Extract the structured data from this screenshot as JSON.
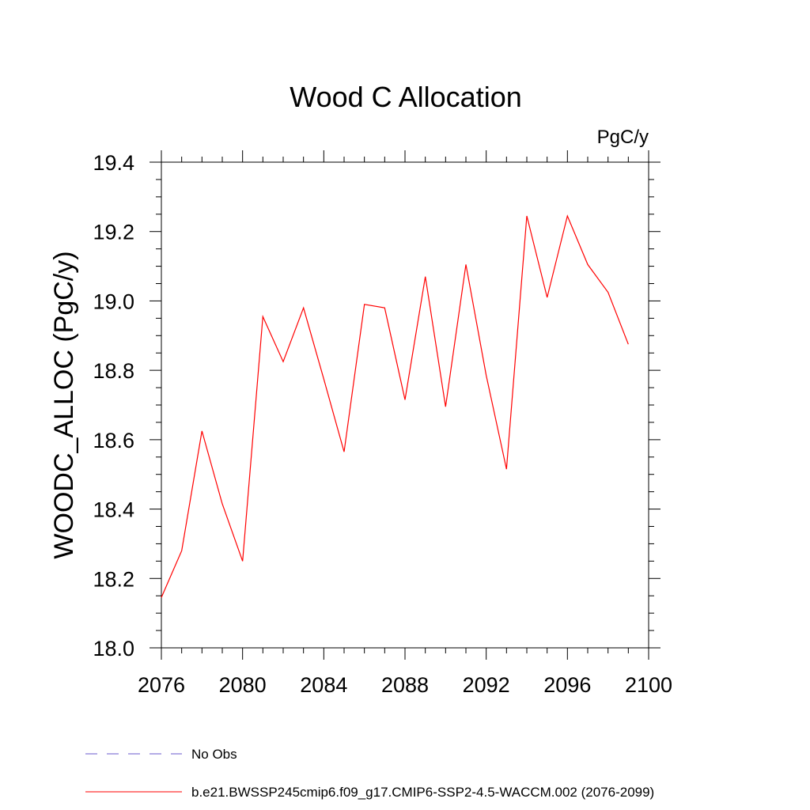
{
  "chart_data": {
    "type": "line",
    "title": "Wood C Allocation",
    "units": "PgC/y",
    "xlabel": "",
    "ylabel": "WOODC_ALLOC  (PgC/y)",
    "xlim": [
      2076,
      2100
    ],
    "ylim": [
      18.0,
      19.4
    ],
    "x_ticks": [
      2076,
      2080,
      2084,
      2088,
      2092,
      2096,
      2100
    ],
    "x_tick_labels": [
      "2076",
      "2080",
      "2084",
      "2088",
      "2092",
      "2096",
      "2100"
    ],
    "y_ticks": [
      18.0,
      18.2,
      18.4,
      18.6,
      18.8,
      19.0,
      19.2,
      19.4
    ],
    "y_tick_labels": [
      "18.0",
      "18.2",
      "18.4",
      "18.6",
      "18.8",
      "19.0",
      "19.2",
      "19.4"
    ],
    "grid": false,
    "legend_position": "bottom",
    "x": [
      2076,
      2077,
      2078,
      2079,
      2080,
      2081,
      2082,
      2083,
      2084,
      2085,
      2086,
      2087,
      2088,
      2089,
      2090,
      2091,
      2092,
      2093,
      2094,
      2095,
      2096,
      2097,
      2098,
      2099
    ],
    "series": [
      {
        "name": "b.e21.BWSSP245cmip6.f09_g17.CMIP6-SSP2-4.5-WACCM.002 (2076-2099)",
        "color": "#ff0000",
        "style": "solid",
        "values": [
          18.145,
          18.28,
          18.625,
          18.415,
          18.25,
          18.955,
          18.825,
          18.98,
          18.775,
          18.565,
          18.99,
          18.98,
          18.715,
          19.07,
          18.695,
          19.105,
          18.785,
          18.515,
          19.245,
          19.01,
          19.245,
          19.105,
          19.025,
          18.875
        ]
      }
    ],
    "legend": [
      {
        "label": "No Obs",
        "color": "#6a5acd",
        "style": "dashed"
      },
      {
        "label": "b.e21.BWSSP245cmip6.f09_g17.CMIP6-SSP2-4.5-WACCM.002 (2076-2099)",
        "color": "#ff0000",
        "style": "solid"
      }
    ]
  }
}
